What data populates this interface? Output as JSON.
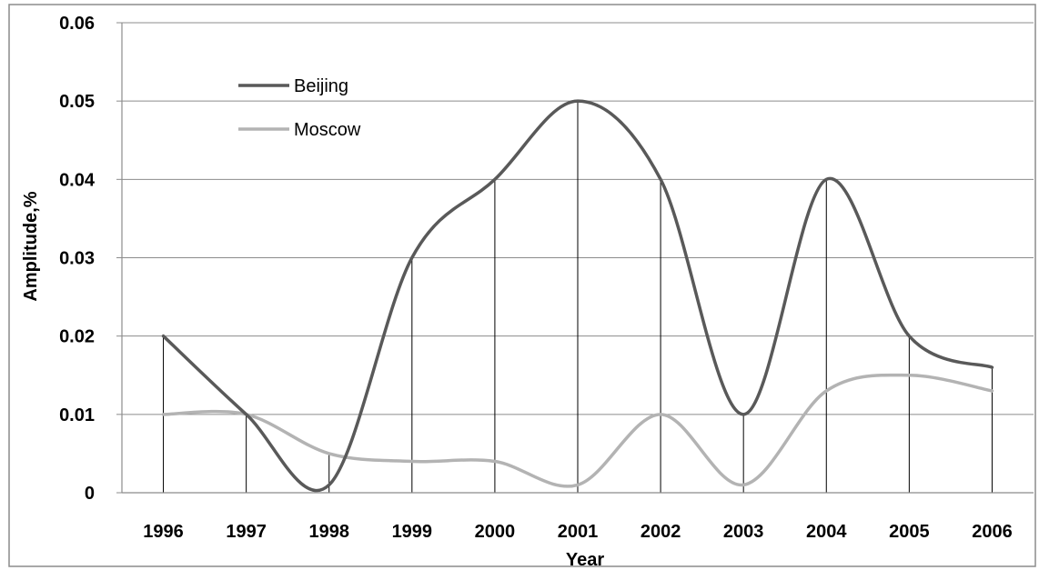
{
  "chart_data": {
    "type": "line",
    "title": "",
    "xlabel": "Year",
    "ylabel": "Amplitude,%",
    "x": [
      "1996",
      "1997",
      "1998",
      "1999",
      "2000",
      "2001",
      "2002",
      "2003",
      "2004",
      "2005",
      "2006"
    ],
    "ylim": [
      0,
      0.06
    ],
    "yticks": [
      "0",
      "0.01",
      "0.02",
      "0.03",
      "0.04",
      "0.05",
      "0.06"
    ],
    "grid": true,
    "legend_position": "top-left",
    "series": [
      {
        "name": "Beijing",
        "color": "#595959",
        "values": [
          0.02,
          0.01,
          0.001,
          0.03,
          0.04,
          0.05,
          0.04,
          0.01,
          0.04,
          0.02,
          0.016
        ]
      },
      {
        "name": "Moscow",
        "color": "#b3b3b3",
        "values": [
          0.01,
          0.01,
          0.005,
          0.004,
          0.004,
          0.001,
          0.01,
          0.001,
          0.013,
          0.015,
          0.013
        ]
      }
    ],
    "drop_lines": true
  }
}
